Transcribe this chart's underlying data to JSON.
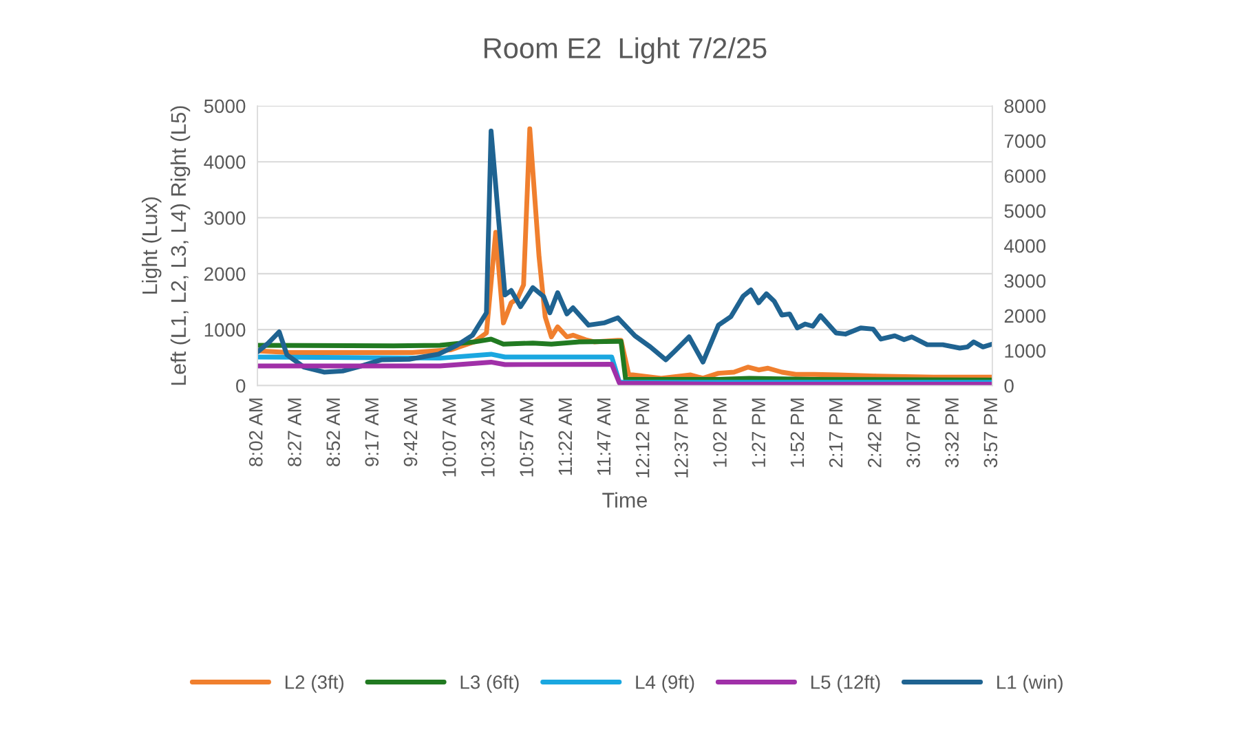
{
  "chart_data": {
    "type": "line",
    "title": "Room E2  Light 7/2/25",
    "xlabel": "Time",
    "ylabel": "Light (Lux)\nLeft (L1, L2, L3, L4) Right (L5)",
    "xlim": [
      8.033,
      15.95
    ],
    "xticks": [
      {
        "value": 8.033,
        "label": "8:02 AM"
      },
      {
        "value": 8.45,
        "label": "8:27 AM"
      },
      {
        "value": 8.867,
        "label": "8:52 AM"
      },
      {
        "value": 9.283,
        "label": "9:17 AM"
      },
      {
        "value": 9.7,
        "label": "9:42 AM"
      },
      {
        "value": 10.117,
        "label": "10:07 AM"
      },
      {
        "value": 10.533,
        "label": "10:32 AM"
      },
      {
        "value": 10.95,
        "label": "10:57 AM"
      },
      {
        "value": 11.367,
        "label": "11:22 AM"
      },
      {
        "value": 11.783,
        "label": "11:47 AM"
      },
      {
        "value": 12.2,
        "label": "12:12 PM"
      },
      {
        "value": 12.617,
        "label": "12:37 PM"
      },
      {
        "value": 13.033,
        "label": "1:02 PM"
      },
      {
        "value": 13.45,
        "label": "1:27 PM"
      },
      {
        "value": 13.867,
        "label": "1:52 PM"
      },
      {
        "value": 14.283,
        "label": "2:17 PM"
      },
      {
        "value": 14.7,
        "label": "2:42 PM"
      },
      {
        "value": 15.117,
        "label": "3:07 PM"
      },
      {
        "value": 15.533,
        "label": "3:32 PM"
      },
      {
        "value": 15.95,
        "label": "3:57 PM"
      }
    ],
    "ylim": [
      0,
      5000
    ],
    "yticks": [
      0,
      1000,
      2000,
      3000,
      4000,
      5000
    ],
    "y2lim": [
      0,
      8000
    ],
    "y2ticks": [
      0,
      1000,
      2000,
      3000,
      4000,
      5000,
      6000,
      7000,
      8000
    ],
    "grid": "y",
    "legend": "bottom",
    "marker": "none",
    "line_style": "solid",
    "series": [
      {
        "name": "L2 (3ft)",
        "color": "#f07f2e",
        "x": [
          8.033,
          8.367,
          9.7,
          10.117,
          10.367,
          10.5,
          10.6,
          10.683,
          10.767,
          10.833,
          10.9,
          10.967,
          11.067,
          11.133,
          11.2,
          11.267,
          11.367,
          11.433,
          11.567,
          11.667,
          11.917,
          11.95,
          12.033,
          12.183,
          12.383,
          12.7,
          12.833,
          13.0,
          13.167,
          13.317,
          13.433,
          13.533,
          13.683,
          13.833,
          14.033,
          14.283,
          14.7,
          15.317,
          15.95
        ],
        "values": [
          620,
          590,
          590,
          640,
          780,
          940,
          2740,
          1120,
          1480,
          1550,
          1800,
          4590,
          2300,
          1230,
          870,
          1050,
          870,
          900,
          820,
          780,
          810,
          810,
          200,
          170,
          130,
          190,
          130,
          220,
          240,
          330,
          280,
          310,
          240,
          200,
          200,
          190,
          170,
          150,
          150
        ]
      },
      {
        "name": "L3 (6ft)",
        "color": "#217a21",
        "x": [
          8.033,
          9.5,
          10.0,
          10.367,
          10.55,
          10.683,
          11.0,
          11.2,
          11.5,
          11.917,
          11.95,
          12.0,
          13.0,
          13.333,
          14.0,
          15.95
        ],
        "values": [
          720,
          710,
          720,
          780,
          830,
          740,
          760,
          740,
          780,
          790,
          790,
          110,
          110,
          130,
          110,
          100
        ]
      },
      {
        "name": "L4 (9ft)",
        "color": "#1aa7e0",
        "x": [
          8.033,
          10.0,
          10.55,
          10.7,
          11.85,
          11.933,
          15.95
        ],
        "values": [
          510,
          490,
          560,
          510,
          510,
          60,
          60
        ]
      },
      {
        "name": "L5 (12ft)",
        "color": "#a030a8",
        "axis": "y2",
        "x": [
          8.033,
          10.0,
          10.55,
          10.7,
          11.85,
          11.933,
          13.0,
          15.95
        ],
        "values": [
          560,
          560,
          670,
          600,
          610,
          70,
          40,
          40
        ]
      },
      {
        "name": "L1 (win)",
        "color": "#1f6391",
        "x": [
          8.033,
          8.15,
          8.267,
          8.35,
          8.533,
          8.75,
          8.95,
          9.15,
          9.367,
          9.667,
          9.983,
          10.183,
          10.35,
          10.5,
          10.55,
          10.7,
          10.767,
          10.867,
          11.0,
          11.117,
          11.183,
          11.267,
          11.367,
          11.433,
          11.6,
          11.767,
          11.917,
          12.1,
          12.267,
          12.433,
          12.533,
          12.683,
          12.833,
          13.0,
          13.133,
          13.267,
          13.35,
          13.433,
          13.517,
          13.6,
          13.683,
          13.767,
          13.85,
          13.933,
          14.017,
          14.1,
          14.267,
          14.367,
          14.533,
          14.667,
          14.75,
          14.9,
          15.0,
          15.083,
          15.25,
          15.417,
          15.6,
          15.683,
          15.75,
          15.85,
          15.95
        ],
        "values": [
          600,
          760,
          960,
          550,
          330,
          240,
          260,
          350,
          460,
          470,
          560,
          720,
          900,
          1300,
          4550,
          1620,
          1700,
          1410,
          1750,
          1590,
          1300,
          1660,
          1280,
          1390,
          1080,
          1120,
          1210,
          890,
          690,
          460,
          620,
          870,
          420,
          1080,
          1230,
          1600,
          1710,
          1480,
          1640,
          1510,
          1260,
          1280,
          1030,
          1100,
          1060,
          1250,
          940,
          920,
          1030,
          1010,
          830,
          890,
          820,
          870,
          730,
          730,
          670,
          690,
          780,
          690,
          740
        ]
      }
    ]
  }
}
